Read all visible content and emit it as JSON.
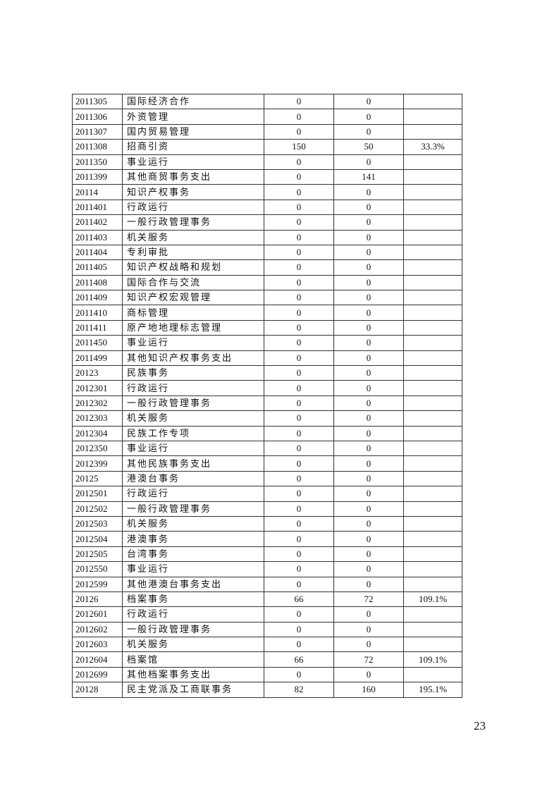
{
  "table": {
    "rows": [
      [
        "2011305",
        "国际经济合作",
        "0",
        "0",
        ""
      ],
      [
        "2011306",
        "外资管理",
        "0",
        "0",
        ""
      ],
      [
        "2011307",
        "国内贸易管理",
        "0",
        "0",
        ""
      ],
      [
        "2011308",
        "招商引资",
        "150",
        "50",
        "33.3%"
      ],
      [
        "2011350",
        "事业运行",
        "0",
        "0",
        ""
      ],
      [
        "2011399",
        "其他商贸事务支出",
        "0",
        "141",
        ""
      ],
      [
        "20114",
        "知识产权事务",
        "0",
        "0",
        ""
      ],
      [
        "2011401",
        "行政运行",
        "0",
        "0",
        ""
      ],
      [
        "2011402",
        "一般行政管理事务",
        "0",
        "0",
        ""
      ],
      [
        "2011403",
        "机关服务",
        "0",
        "0",
        ""
      ],
      [
        "2011404",
        "专利审批",
        "0",
        "0",
        ""
      ],
      [
        "2011405",
        "知识产权战略和规划",
        "0",
        "0",
        ""
      ],
      [
        "2011408",
        "国际合作与交流",
        "0",
        "0",
        ""
      ],
      [
        "2011409",
        "知识产权宏观管理",
        "0",
        "0",
        ""
      ],
      [
        "2011410",
        "商标管理",
        "0",
        "0",
        ""
      ],
      [
        "2011411",
        "原产地地理标志管理",
        "0",
        "0",
        ""
      ],
      [
        "2011450",
        "事业运行",
        "0",
        "0",
        ""
      ],
      [
        "2011499",
        "其他知识产权事务支出",
        "0",
        "0",
        ""
      ],
      [
        "20123",
        "民族事务",
        "0",
        "0",
        ""
      ],
      [
        "2012301",
        "行政运行",
        "0",
        "0",
        ""
      ],
      [
        "2012302",
        "一般行政管理事务",
        "0",
        "0",
        ""
      ],
      [
        "2012303",
        "机关服务",
        "0",
        "0",
        ""
      ],
      [
        "2012304",
        "民族工作专项",
        "0",
        "0",
        ""
      ],
      [
        "2012350",
        "事业运行",
        "0",
        "0",
        ""
      ],
      [
        "2012399",
        "其他民族事务支出",
        "0",
        "0",
        ""
      ],
      [
        "20125",
        "港澳台事务",
        "0",
        "0",
        ""
      ],
      [
        "2012501",
        "行政运行",
        "0",
        "0",
        ""
      ],
      [
        "2012502",
        "一般行政管理事务",
        "0",
        "0",
        ""
      ],
      [
        "2012503",
        "机关服务",
        "0",
        "0",
        ""
      ],
      [
        "2012504",
        "港澳事务",
        "0",
        "0",
        ""
      ],
      [
        "2012505",
        "台湾事务",
        "0",
        "0",
        ""
      ],
      [
        "2012550",
        "事业运行",
        "0",
        "0",
        ""
      ],
      [
        "2012599",
        "其他港澳台事务支出",
        "0",
        "0",
        ""
      ],
      [
        "20126",
        "档案事务",
        "66",
        "72",
        "109.1%"
      ],
      [
        "2012601",
        "行政运行",
        "0",
        "0",
        ""
      ],
      [
        "2012602",
        "一般行政管理事务",
        "0",
        "0",
        ""
      ],
      [
        "2012603",
        "机关服务",
        "0",
        "0",
        ""
      ],
      [
        "2012604",
        "档案馆",
        "66",
        "72",
        "109.1%"
      ],
      [
        "2012699",
        "其他档案事务支出",
        "0",
        "0",
        ""
      ],
      [
        "20128",
        "民主党派及工商联事务",
        "82",
        "160",
        "195.1%"
      ]
    ]
  },
  "page_number": "23"
}
